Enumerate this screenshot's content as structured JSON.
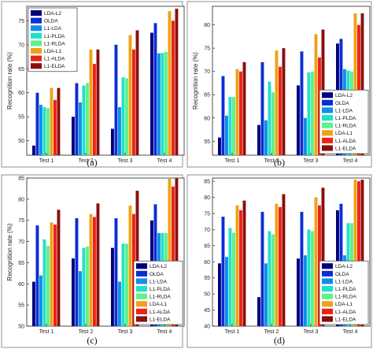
{
  "figure": {
    "series_colors": [
      "#00007a",
      "#0b2dd6",
      "#0f8fe8",
      "#20e0c8",
      "#5cf28c",
      "#f0a018",
      "#ee2212",
      "#8a0e0e"
    ]
  },
  "chart_data": [
    {
      "type": "bar",
      "panel_label": "(a)",
      "ylabel": "Recognition rate (%)",
      "categories": [
        "Test 1",
        "Test 2",
        "Test 3",
        "Test 4"
      ],
      "ylim": [
        47,
        78
      ],
      "yticks": [
        50,
        55,
        60,
        65,
        70,
        75
      ],
      "legend_position": "top-left",
      "series": [
        {
          "name": "LDA-L2",
          "values": [
            49.0,
            55.0,
            52.5,
            72.5
          ]
        },
        {
          "name": "OLDA",
          "values": [
            60.0,
            62.0,
            70.0,
            74.5
          ]
        },
        {
          "name": "L1-LDA",
          "values": [
            57.5,
            58.0,
            57.0,
            68.2
          ]
        },
        {
          "name": "L1-PLDA",
          "values": [
            57.0,
            61.5,
            63.2,
            68.3
          ]
        },
        {
          "name": "L1-RLDA",
          "values": [
            56.8,
            62.0,
            63.0,
            68.5
          ]
        },
        {
          "name": "LDA-L1",
          "values": [
            61.0,
            69.0,
            72.0,
            77.0
          ]
        },
        {
          "name": "L1-ALDA",
          "values": [
            58.5,
            66.0,
            69.0,
            75.0
          ]
        },
        {
          "name": "L1-ELDA",
          "values": [
            61.0,
            69.0,
            73.0,
            77.5
          ]
        }
      ]
    },
    {
      "type": "bar",
      "panel_label": "(b)",
      "ylabel": "Recognition rate (%)",
      "categories": [
        "Test 1",
        "Test 2",
        "Test 3",
        "Test 4"
      ],
      "ylim": [
        52,
        84
      ],
      "yticks": [
        55,
        60,
        65,
        70,
        75,
        80
      ],
      "legend_position": "bottom-right",
      "series": [
        {
          "name": "LDA-L2",
          "values": [
            55.8,
            58.5,
            67.0,
            76.0
          ]
        },
        {
          "name": "OLDA",
          "values": [
            69.0,
            72.0,
            74.3,
            77.0
          ]
        },
        {
          "name": "L1-LDA",
          "values": [
            60.5,
            59.5,
            60.0,
            70.5
          ]
        },
        {
          "name": "L1-PLDA",
          "values": [
            64.5,
            67.8,
            69.8,
            70.2
          ]
        },
        {
          "name": "L1-RLDA",
          "values": [
            64.5,
            65.5,
            70.0,
            70.0
          ]
        },
        {
          "name": "LDA-L1",
          "values": [
            70.5,
            74.5,
            78.0,
            82.5
          ]
        },
        {
          "name": "L1-ALDA",
          "values": [
            70.0,
            71.0,
            73.0,
            80.0
          ]
        },
        {
          "name": "L1-ELDA",
          "values": [
            72.0,
            75.0,
            79.0,
            82.5
          ]
        }
      ]
    },
    {
      "type": "bar",
      "panel_label": "(c)",
      "ylabel": "Recognition rate (%)",
      "categories": [
        "Test 1",
        "Test 2",
        "Test 3",
        "Test 4"
      ],
      "ylim": [
        50,
        85
      ],
      "yticks": [
        50,
        55,
        60,
        65,
        70,
        75,
        80,
        85
      ],
      "legend_position": "bottom-right",
      "series": [
        {
          "name": "LDA-L2",
          "values": [
            60.5,
            66.0,
            68.5,
            75.0
          ]
        },
        {
          "name": "OLDA",
          "values": [
            73.8,
            75.5,
            75.5,
            78.8
          ]
        },
        {
          "name": "L1-LDA",
          "values": [
            62.0,
            63.0,
            60.5,
            72.0
          ]
        },
        {
          "name": "L1-PLDA",
          "values": [
            70.5,
            68.5,
            69.5,
            72.0
          ]
        },
        {
          "name": "L1-RLDA",
          "values": [
            69.0,
            68.8,
            69.5,
            72.0
          ]
        },
        {
          "name": "LDA-L1",
          "values": [
            74.5,
            76.5,
            78.5,
            84.8
          ]
        },
        {
          "name": "L1-ALDA",
          "values": [
            74.0,
            75.8,
            76.5,
            83.0
          ]
        },
        {
          "name": "L1-ELDA",
          "values": [
            77.5,
            79.0,
            82.0,
            85.0
          ]
        }
      ]
    },
    {
      "type": "bar",
      "panel_label": "(d)",
      "ylabel": "",
      "categories": [
        "Test 1",
        "Test 2",
        "Test 3",
        "Test 4"
      ],
      "ylim": [
        40,
        86
      ],
      "yticks": [
        40,
        45,
        50,
        55,
        60,
        65,
        70,
        75,
        80,
        85
      ],
      "legend_position": "bottom-right",
      "series": [
        {
          "name": "LDA-L2",
          "values": [
            59.5,
            49.0,
            61.0,
            76.0
          ]
        },
        {
          "name": "OLDA",
          "values": [
            74.0,
            75.5,
            75.5,
            78.0
          ]
        },
        {
          "name": "L1-LDA",
          "values": [
            61.5,
            59.5,
            62.0,
            62.0
          ]
        },
        {
          "name": "L1-PLDA",
          "values": [
            70.5,
            69.5,
            70.0,
            72.0
          ]
        },
        {
          "name": "L1-RLDA",
          "values": [
            69.0,
            68.5,
            69.5,
            72.0
          ]
        },
        {
          "name": "LDA-L1",
          "values": [
            77.5,
            78.0,
            80.0,
            85.5
          ]
        },
        {
          "name": "L1-ALDA",
          "values": [
            76.0,
            77.0,
            77.5,
            85.0
          ]
        },
        {
          "name": "L1-ELDA",
          "values": [
            79.0,
            81.0,
            83.0,
            85.5
          ]
        }
      ]
    }
  ]
}
